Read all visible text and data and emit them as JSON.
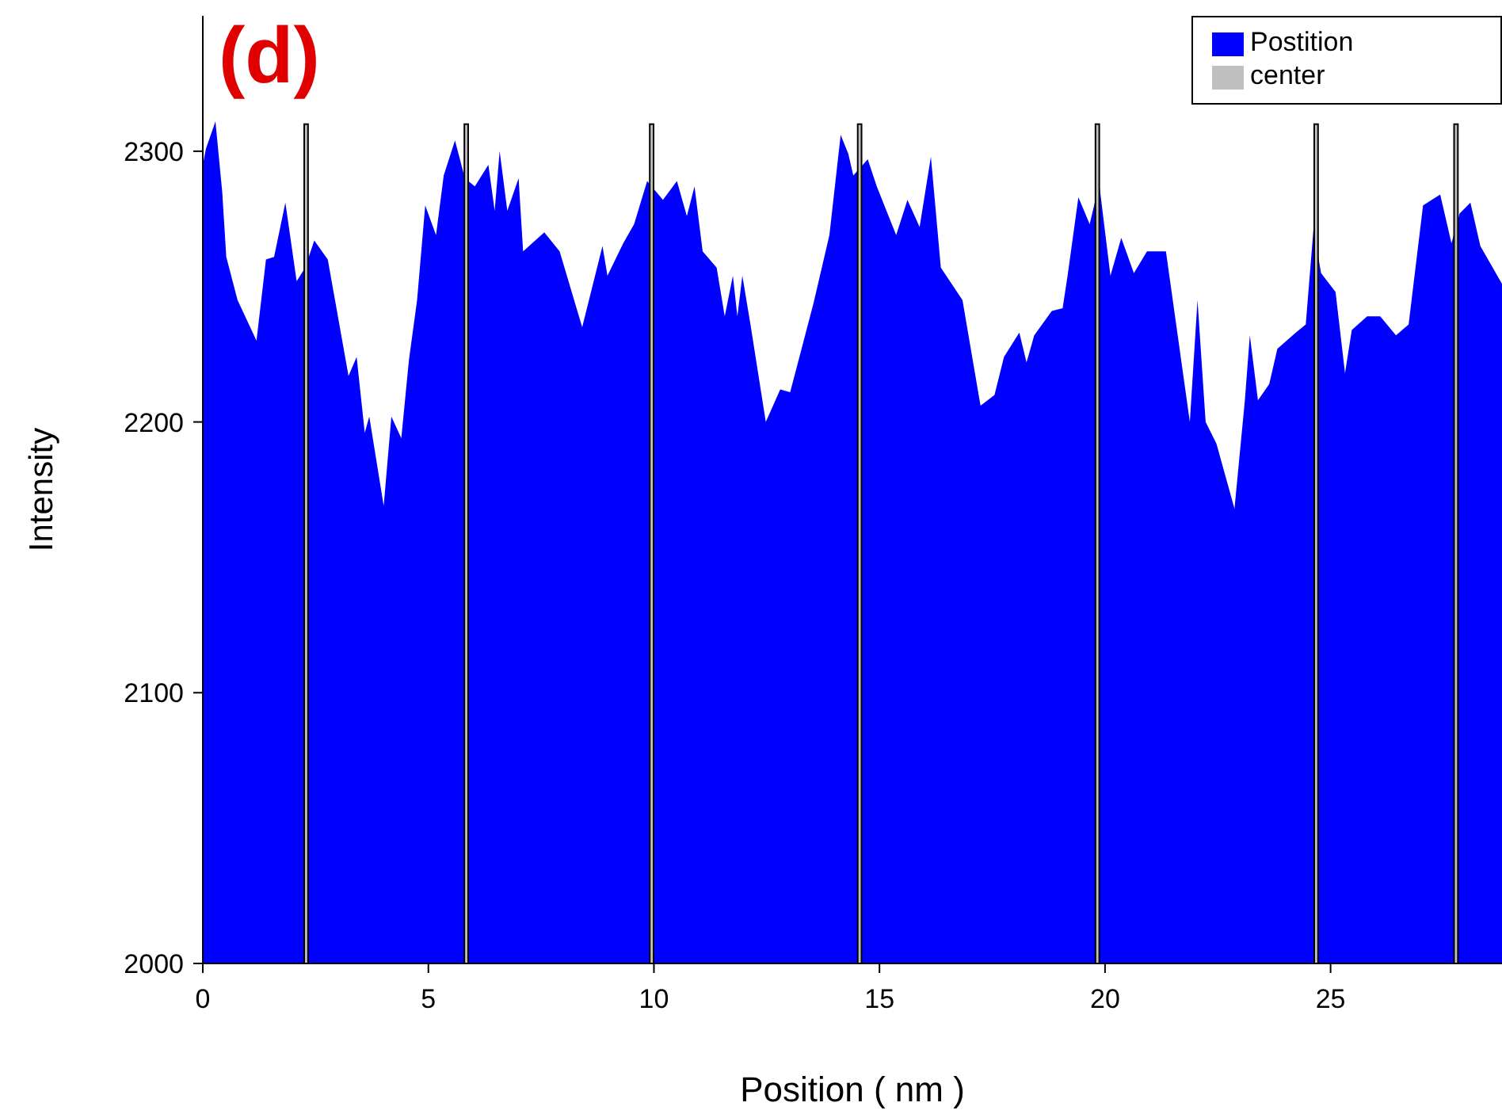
{
  "chart_data": {
    "type": "area",
    "xlabel": "Position ( nm )",
    "ylabel": "Intensity",
    "annotations": [
      "(d)"
    ],
    "xlim": [
      0,
      28.8
    ],
    "xticks": [
      0,
      5,
      10,
      15,
      20,
      25
    ],
    "ylim": [
      2000,
      2350
    ],
    "yticks": [
      2000,
      2100,
      2200,
      2300
    ],
    "legend": "top right",
    "series": [
      {
        "name": "Postition",
        "color": "#0000ff",
        "x": [
          0,
          0.07,
          0.28,
          0.43,
          0.52,
          0.77,
          1.19,
          1.4,
          1.58,
          1.83,
          2.08,
          2.27,
          2.47,
          2.77,
          3.23,
          3.41,
          3.59,
          3.69,
          4.01,
          4.18,
          4.4,
          4.57,
          4.75,
          4.93,
          5.17,
          5.34,
          5.59,
          5.81,
          6.03,
          6.33,
          6.47,
          6.58,
          6.75,
          7.0,
          7.1,
          7.57,
          7.91,
          8.41,
          8.86,
          8.97,
          9.32,
          9.56,
          9.85,
          10.2,
          10.51,
          10.73,
          10.9,
          11.08,
          11.39,
          11.57,
          11.75,
          11.85,
          11.96,
          12.14,
          12.48,
          12.8,
          13.02,
          13.54,
          13.89,
          14.14,
          14.31,
          14.42,
          14.74,
          14.94,
          15.37,
          15.62,
          15.89,
          16.14,
          16.36,
          16.84,
          17.24,
          17.55,
          17.76,
          18.1,
          18.26,
          18.43,
          18.82,
          19.06,
          19.17,
          19.41,
          19.66,
          19.87,
          20.12,
          20.36,
          20.64,
          20.93,
          21.35,
          21.88,
          22.05,
          22.23,
          22.47,
          22.87,
          23.1,
          23.21,
          23.39,
          23.64,
          23.82,
          24.23,
          24.45,
          24.62,
          24.79,
          25.11,
          25.32,
          25.47,
          25.81,
          26.1,
          26.45,
          26.73,
          27.05,
          27.43,
          27.68,
          27.86,
          28.1,
          28.32,
          28.8
        ],
        "values": [
          2295,
          2301,
          2311,
          2285,
          2261,
          2245,
          2230,
          2260,
          2261,
          2281,
          2252,
          2257,
          2267,
          2260,
          2217,
          2224,
          2196,
          2202,
          2169,
          2202,
          2194,
          2223,
          2245,
          2280,
          2269,
          2291,
          2304,
          2290,
          2287,
          2295,
          2278,
          2300,
          2278,
          2290,
          2263,
          2270,
          2263,
          2235,
          2265,
          2254,
          2266,
          2273,
          2289,
          2282,
          2289,
          2276,
          2287,
          2263,
          2257,
          2239,
          2254,
          2239,
          2254,
          2236,
          2200,
          2212,
          2211,
          2244,
          2269,
          2306,
          2299,
          2291,
          2297,
          2287,
          2269,
          2282,
          2272,
          2298,
          2257,
          2245,
          2206,
          2210,
          2224,
          2233,
          2222,
          2232,
          2241,
          2242,
          2254,
          2283,
          2273,
          2288,
          2254,
          2268,
          2255,
          2263,
          2263,
          2200,
          2245,
          2200,
          2192,
          2168,
          2208,
          2232,
          2208,
          2214,
          2227,
          2233,
          2236,
          2271,
          2255,
          2248,
          2218,
          2234,
          2239,
          2239,
          2232,
          2236,
          2280,
          2284,
          2266,
          2277,
          2281,
          2265,
          2251
        ]
      },
      {
        "name": "center",
        "type": "bar",
        "color": "#c0c0c0",
        "x": [
          2.29,
          5.84,
          9.95,
          14.56,
          19.83,
          24.68,
          27.78
        ],
        "values": [
          2310,
          2310,
          2310,
          2310,
          2310,
          2310,
          2310
        ]
      }
    ]
  }
}
